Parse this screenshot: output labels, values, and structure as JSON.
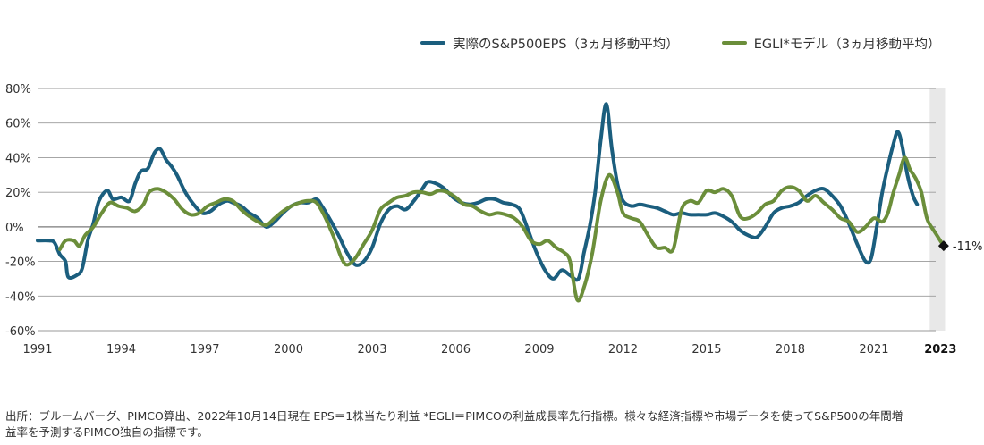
{
  "chart_data": {
    "type": "line",
    "title": "",
    "xlabel": "",
    "ylabel": "",
    "ylim": [
      -60,
      80
    ],
    "y_unit": "%",
    "y_ticks": [
      80,
      60,
      40,
      20,
      0,
      -20,
      -40,
      -60
    ],
    "y_tick_labels": [
      "80%",
      "60%",
      "40%",
      "20%",
      "0%",
      "-20%",
      "-40%",
      "-60%"
    ],
    "xlim": [
      1991.0,
      2023.6
    ],
    "x_ticks": [
      1991,
      1994,
      1997,
      2000,
      2003,
      2006,
      2009,
      2012,
      2015,
      2018,
      2021,
      2023
    ],
    "x_tick_labels": [
      "1991",
      "1994",
      "1997",
      "2000",
      "2003",
      "2006",
      "2009",
      "2012",
      "2015",
      "2018",
      "2021",
      "2023"
    ],
    "grid": "horizontal",
    "legend_position": "top-right",
    "shaded_region": {
      "from": 2023.0,
      "to": 2023.55,
      "color": "#e8e8e8"
    },
    "series": [
      {
        "name": "実際のS&P500EPS（3ヵ月移動平均）",
        "color": "#1b5e7e",
        "points": [
          [
            1991.0,
            -8
          ],
          [
            1991.4,
            -8
          ],
          [
            1991.6,
            -9
          ],
          [
            1991.8,
            -16
          ],
          [
            1992.0,
            -20
          ],
          [
            1992.1,
            -29
          ],
          [
            1992.4,
            -28
          ],
          [
            1992.6,
            -24
          ],
          [
            1992.8,
            -8
          ],
          [
            1993.0,
            2
          ],
          [
            1993.2,
            15
          ],
          [
            1993.5,
            21
          ],
          [
            1993.7,
            16
          ],
          [
            1994.0,
            17
          ],
          [
            1994.3,
            15
          ],
          [
            1994.5,
            25
          ],
          [
            1994.7,
            32
          ],
          [
            1994.9,
            33
          ],
          [
            1995.0,
            35
          ],
          [
            1995.2,
            43
          ],
          [
            1995.4,
            45
          ],
          [
            1995.6,
            39
          ],
          [
            1995.8,
            35
          ],
          [
            1996.0,
            30
          ],
          [
            1996.3,
            20
          ],
          [
            1996.6,
            13
          ],
          [
            1996.9,
            8
          ],
          [
            1997.2,
            9
          ],
          [
            1997.5,
            13
          ],
          [
            1997.8,
            15
          ],
          [
            1998.0,
            14
          ],
          [
            1998.3,
            12
          ],
          [
            1998.6,
            8
          ],
          [
            1998.9,
            5
          ],
          [
            1999.2,
            0
          ],
          [
            1999.5,
            3
          ],
          [
            1999.8,
            8
          ],
          [
            2000.1,
            12
          ],
          [
            2000.4,
            14
          ],
          [
            2000.7,
            14
          ],
          [
            2001.0,
            16
          ],
          [
            2001.2,
            12
          ],
          [
            2001.5,
            4
          ],
          [
            2001.8,
            -5
          ],
          [
            2002.1,
            -15
          ],
          [
            2002.4,
            -22
          ],
          [
            2002.7,
            -20
          ],
          [
            2003.0,
            -12
          ],
          [
            2003.3,
            2
          ],
          [
            2003.6,
            10
          ],
          [
            2003.9,
            12
          ],
          [
            2004.2,
            10
          ],
          [
            2004.5,
            15
          ],
          [
            2004.8,
            22
          ],
          [
            2005.0,
            26
          ],
          [
            2005.3,
            25
          ],
          [
            2005.6,
            22
          ],
          [
            2005.9,
            17
          ],
          [
            2006.2,
            14
          ],
          [
            2006.5,
            13
          ],
          [
            2006.8,
            14
          ],
          [
            2007.1,
            16
          ],
          [
            2007.4,
            16
          ],
          [
            2007.7,
            14
          ],
          [
            2008.0,
            13
          ],
          [
            2008.3,
            10
          ],
          [
            2008.6,
            -2
          ],
          [
            2008.9,
            -15
          ],
          [
            2009.2,
            -25
          ],
          [
            2009.5,
            -30
          ],
          [
            2009.8,
            -25
          ],
          [
            2010.1,
            -28
          ],
          [
            2010.4,
            -30
          ],
          [
            2010.6,
            -15
          ],
          [
            2010.8,
            0
          ],
          [
            2011.0,
            20
          ],
          [
            2011.2,
            50
          ],
          [
            2011.4,
            71
          ],
          [
            2011.6,
            45
          ],
          [
            2011.8,
            25
          ],
          [
            2012.0,
            15
          ],
          [
            2012.3,
            12
          ],
          [
            2012.6,
            13
          ],
          [
            2012.9,
            12
          ],
          [
            2013.2,
            11
          ],
          [
            2013.5,
            9
          ],
          [
            2013.8,
            7
          ],
          [
            2014.1,
            8
          ],
          [
            2014.4,
            7
          ],
          [
            2014.7,
            7
          ],
          [
            2015.0,
            7
          ],
          [
            2015.3,
            8
          ],
          [
            2015.6,
            6
          ],
          [
            2015.9,
            3
          ],
          [
            2016.2,
            -2
          ],
          [
            2016.5,
            -5
          ],
          [
            2016.8,
            -6
          ],
          [
            2017.1,
            0
          ],
          [
            2017.4,
            8
          ],
          [
            2017.7,
            11
          ],
          [
            2018.0,
            12
          ],
          [
            2018.3,
            14
          ],
          [
            2018.6,
            18
          ],
          [
            2018.9,
            21
          ],
          [
            2019.2,
            22
          ],
          [
            2019.5,
            18
          ],
          [
            2019.8,
            12
          ],
          [
            2020.1,
            2
          ],
          [
            2020.4,
            -10
          ],
          [
            2020.7,
            -20
          ],
          [
            2020.9,
            -18
          ],
          [
            2021.1,
            0
          ],
          [
            2021.3,
            20
          ],
          [
            2021.5,
            35
          ],
          [
            2021.7,
            48
          ],
          [
            2021.85,
            55
          ],
          [
            2022.0,
            48
          ],
          [
            2022.2,
            30
          ],
          [
            2022.4,
            18
          ],
          [
            2022.55,
            13
          ]
        ]
      },
      {
        "name": "EGLI*モデル（3ヵ月移動平均）",
        "color": "#6b8e3a",
        "points": [
          [
            1991.8,
            -13
          ],
          [
            1992.0,
            -8
          ],
          [
            1992.3,
            -8
          ],
          [
            1992.5,
            -11
          ],
          [
            1992.7,
            -5
          ],
          [
            1993.0,
            0
          ],
          [
            1993.3,
            8
          ],
          [
            1993.6,
            14
          ],
          [
            1993.9,
            12
          ],
          [
            1994.2,
            11
          ],
          [
            1994.5,
            9
          ],
          [
            1994.8,
            13
          ],
          [
            1995.0,
            20
          ],
          [
            1995.3,
            22
          ],
          [
            1995.6,
            20
          ],
          [
            1995.9,
            16
          ],
          [
            1996.2,
            10
          ],
          [
            1996.5,
            7
          ],
          [
            1996.8,
            8
          ],
          [
            1997.1,
            12
          ],
          [
            1997.4,
            14
          ],
          [
            1997.7,
            16
          ],
          [
            1998.0,
            15
          ],
          [
            1998.3,
            10
          ],
          [
            1998.6,
            6
          ],
          [
            1998.9,
            3
          ],
          [
            1999.2,
            1
          ],
          [
            1999.5,
            5
          ],
          [
            1999.8,
            9
          ],
          [
            2000.1,
            12
          ],
          [
            2000.4,
            14
          ],
          [
            2000.7,
            15
          ],
          [
            2001.0,
            14
          ],
          [
            2001.3,
            6
          ],
          [
            2001.6,
            -5
          ],
          [
            2001.9,
            -18
          ],
          [
            2002.1,
            -22
          ],
          [
            2002.4,
            -18
          ],
          [
            2002.7,
            -10
          ],
          [
            2003.0,
            -2
          ],
          [
            2003.3,
            10
          ],
          [
            2003.6,
            14
          ],
          [
            2003.9,
            17
          ],
          [
            2004.2,
            18
          ],
          [
            2004.5,
            20
          ],
          [
            2004.8,
            20
          ],
          [
            2005.1,
            19
          ],
          [
            2005.4,
            21
          ],
          [
            2005.7,
            20
          ],
          [
            2006.0,
            17
          ],
          [
            2006.3,
            13
          ],
          [
            2006.6,
            12
          ],
          [
            2006.9,
            9
          ],
          [
            2007.2,
            7
          ],
          [
            2007.5,
            8
          ],
          [
            2007.8,
            7
          ],
          [
            2008.1,
            5
          ],
          [
            2008.4,
            0
          ],
          [
            2008.7,
            -8
          ],
          [
            2009.0,
            -10
          ],
          [
            2009.3,
            -8
          ],
          [
            2009.6,
            -12
          ],
          [
            2009.9,
            -15
          ],
          [
            2010.1,
            -20
          ],
          [
            2010.35,
            -42
          ],
          [
            2010.6,
            -35
          ],
          [
            2010.9,
            -15
          ],
          [
            2011.2,
            15
          ],
          [
            2011.5,
            30
          ],
          [
            2011.8,
            20
          ],
          [
            2012.0,
            8
          ],
          [
            2012.3,
            5
          ],
          [
            2012.6,
            3
          ],
          [
            2012.9,
            -5
          ],
          [
            2013.2,
            -12
          ],
          [
            2013.5,
            -12
          ],
          [
            2013.8,
            -13
          ],
          [
            2014.1,
            10
          ],
          [
            2014.4,
            15
          ],
          [
            2014.7,
            14
          ],
          [
            2015.0,
            21
          ],
          [
            2015.3,
            20
          ],
          [
            2015.6,
            22
          ],
          [
            2015.9,
            18
          ],
          [
            2016.2,
            6
          ],
          [
            2016.5,
            5
          ],
          [
            2016.8,
            8
          ],
          [
            2017.1,
            13
          ],
          [
            2017.4,
            15
          ],
          [
            2017.7,
            21
          ],
          [
            2018.0,
            23
          ],
          [
            2018.3,
            21
          ],
          [
            2018.6,
            15
          ],
          [
            2018.9,
            18
          ],
          [
            2019.2,
            14
          ],
          [
            2019.5,
            10
          ],
          [
            2019.8,
            5
          ],
          [
            2020.1,
            3
          ],
          [
            2020.4,
            -3
          ],
          [
            2020.7,
            0
          ],
          [
            2021.0,
            5
          ],
          [
            2021.3,
            3
          ],
          [
            2021.5,
            8
          ],
          [
            2021.7,
            20
          ],
          [
            2021.9,
            30
          ],
          [
            2022.1,
            40
          ],
          [
            2022.3,
            33
          ],
          [
            2022.5,
            28
          ],
          [
            2022.7,
            20
          ],
          [
            2022.9,
            5
          ],
          [
            2023.1,
            -1
          ]
        ]
      }
    ],
    "forecast_points": [
      [
        2023.1,
        -1
      ],
      [
        2023.3,
        -6
      ],
      [
        2023.5,
        -11
      ]
    ],
    "annotation": {
      "x": 2023.5,
      "y": -11,
      "label": "-11%",
      "marker": "diamond"
    }
  },
  "footnote": {
    "line1": "出所：ブルームバーグ、PIMCO算出、2022年10月14日現在 EPS＝1株当たり利益 *EGLI＝PIMCOの利益成長率先行指標。様々な経済指標や市場データを使ってS&P500の年間増",
    "line2": "益率を予測するPIMCO独自の指標です。"
  }
}
